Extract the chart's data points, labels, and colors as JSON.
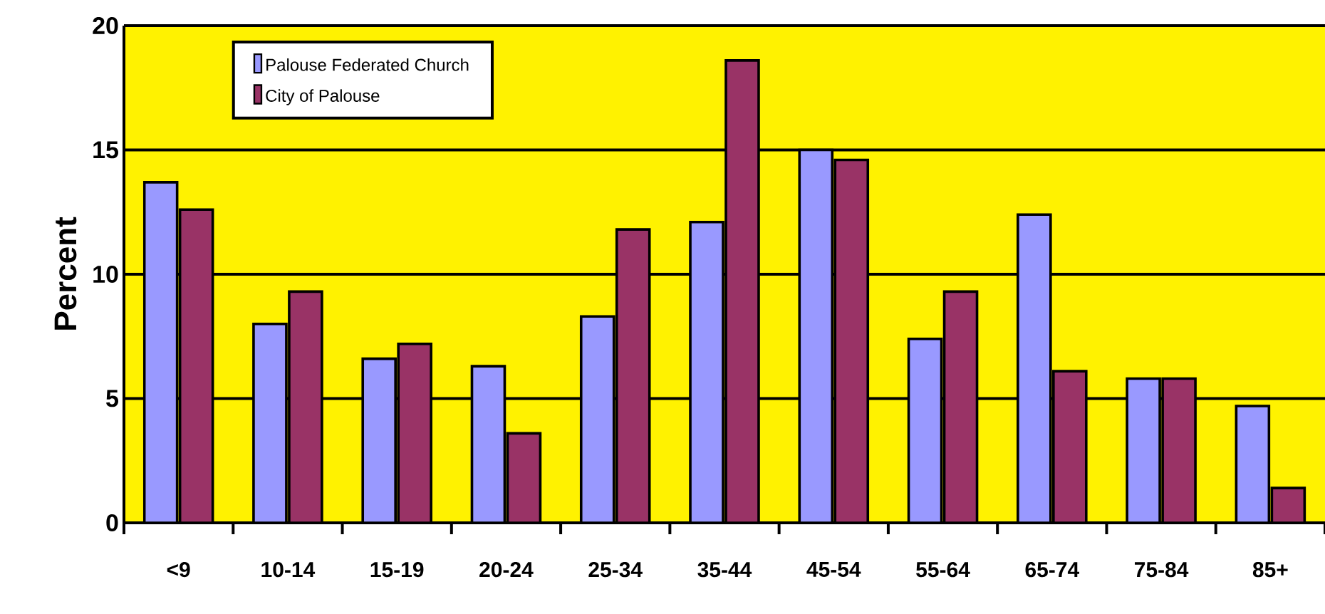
{
  "chart_data": {
    "type": "bar",
    "ylabel": "Percent",
    "categories": [
      "<9",
      "10-14",
      "15-19",
      "20-24",
      "25-34",
      "35-44",
      "45-54",
      "55-64",
      "65-74",
      "75-84",
      "85+"
    ],
    "series": [
      {
        "name": "Palouse Federated Church",
        "color": "#9999ff",
        "values": [
          13.7,
          8.0,
          6.6,
          6.3,
          8.3,
          12.1,
          15.0,
          7.4,
          12.4,
          5.8,
          4.7
        ]
      },
      {
        "name": "City of Palouse",
        "color": "#993366",
        "values": [
          12.6,
          9.3,
          7.2,
          3.6,
          11.8,
          18.6,
          14.6,
          9.3,
          6.1,
          5.8,
          1.4
        ]
      }
    ],
    "ylim": [
      0,
      20
    ],
    "yticks": [
      0,
      5,
      10,
      15,
      20
    ],
    "grid": "y",
    "legend": "top left"
  }
}
